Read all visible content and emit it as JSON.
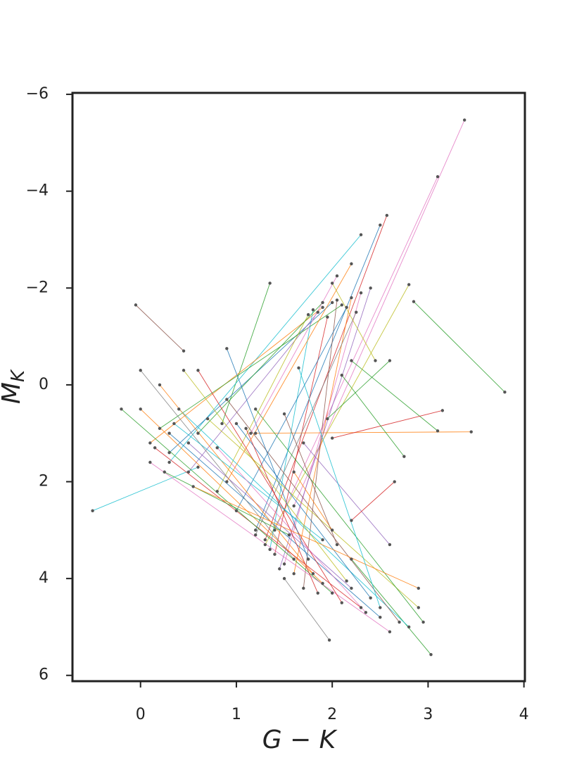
{
  "chart_data": {
    "type": "line-scatter",
    "xlabel": "G − K",
    "ylabel": {
      "main": "M",
      "sub": "K"
    },
    "xlim": [
      -0.71,
      4.01
    ],
    "ylim": [
      -6.03,
      6.12
    ],
    "y_inverted": true,
    "xticks": [
      0,
      1,
      2,
      3,
      4
    ],
    "yticks": [
      {
        "value": -6,
        "label": "−6"
      },
      {
        "value": -4,
        "label": "−4"
      },
      {
        "value": -2,
        "label": "−2"
      },
      0,
      2,
      4,
      6
    ],
    "point_color": "#555555",
    "segments": [
      {
        "x": [
          3.38,
          1.6
        ],
        "y": [
          -5.47,
          2.5
        ],
        "color": "#e377c2"
      },
      {
        "x": [
          3.1,
          1.4
        ],
        "y": [
          -4.3,
          3.0
        ],
        "color": "#e377c2"
      },
      {
        "x": [
          3.8,
          2.85
        ],
        "y": [
          0.15,
          -1.72
        ],
        "color": "#2ca02c"
      },
      {
        "x": [
          -0.5,
          0.6
        ],
        "y": [
          2.6,
          1.7
        ],
        "color": "#17becf"
      },
      {
        "x": [
          -0.05,
          0.45
        ],
        "y": [
          -1.65,
          -0.7
        ],
        "color": "#8c564b"
      },
      {
        "x": [
          1.35,
          0.85
        ],
        "y": [
          -2.1,
          0.8
        ],
        "color": "#2ca02c"
      },
      {
        "x": [
          3.45,
          1.2
        ],
        "y": [
          0.97,
          1.0
        ],
        "color": "#ff7f0e"
      },
      {
        "x": [
          3.1,
          2.2
        ],
        "y": [
          0.95,
          -0.5
        ],
        "color": "#2ca02c"
      },
      {
        "x": [
          3.15,
          2.0
        ],
        "y": [
          0.53,
          1.1
        ],
        "color": "#d62728"
      },
      {
        "x": [
          2.75,
          2.1
        ],
        "y": [
          1.48,
          -0.2
        ],
        "color": "#2ca02c"
      },
      {
        "x": [
          2.57,
          1.3
        ],
        "y": [
          -3.5,
          3.2
        ],
        "color": "#d62728"
      },
      {
        "x": [
          2.5,
          1.2
        ],
        "y": [
          -3.3,
          3.0
        ],
        "color": "#1f77b4"
      },
      {
        "x": [
          2.3,
          0.3
        ],
        "y": [
          -3.1,
          1.6
        ],
        "color": "#17becf"
      },
      {
        "x": [
          2.8,
          1.3
        ],
        "y": [
          -2.07,
          3.3
        ],
        "color": "#bcbd22"
      },
      {
        "x": [
          1.97,
          1.5
        ],
        "y": [
          5.27,
          4.0
        ],
        "color": "#7f7f7f"
      },
      {
        "x": [
          3.03,
          2.2
        ],
        "y": [
          5.57,
          3.6
        ],
        "color": "#2ca02c"
      },
      {
        "x": [
          1.9,
          0.1
        ],
        "y": [
          -1.6,
          1.2
        ],
        "color": "#ff7f0e"
      },
      {
        "x": [
          2.0,
          0.3
        ],
        "y": [
          -1.7,
          1.4
        ],
        "color": "#1f77b4"
      },
      {
        "x": [
          1.85,
          0.5
        ],
        "y": [
          -1.5,
          1.8
        ],
        "color": "#9467bd"
      },
      {
        "x": [
          2.1,
          0.2
        ],
        "y": [
          -1.65,
          0.9
        ],
        "color": "#2ca02c"
      },
      {
        "x": [
          1.95,
          1.4
        ],
        "y": [
          -1.4,
          3.5
        ],
        "color": "#d62728"
      },
      {
        "x": [
          2.2,
          1.6
        ],
        "y": [
          -1.8,
          3.9
        ],
        "color": "#ff7f0e"
      },
      {
        "x": [
          1.8,
          1.35
        ],
        "y": [
          -1.55,
          3.4
        ],
        "color": "#17becf"
      },
      {
        "x": [
          2.05,
          1.7
        ],
        "y": [
          -1.75,
          4.2
        ],
        "color": "#8c564b"
      },
      {
        "x": [
          2.3,
          1.5
        ],
        "y": [
          -1.9,
          3.7
        ],
        "color": "#e377c2"
      },
      {
        "x": [
          1.75,
          0.8
        ],
        "y": [
          -1.45,
          2.2
        ],
        "color": "#bcbd22"
      },
      {
        "x": [
          2.15,
          1.0
        ],
        "y": [
          -1.6,
          2.6
        ],
        "color": "#1f77b4"
      },
      {
        "x": [
          1.9,
          0.6
        ],
        "y": [
          -1.7,
          1.0
        ],
        "color": "#2ca02c"
      },
      {
        "x": [
          2.4,
          1.45
        ],
        "y": [
          -2.0,
          3.8
        ],
        "color": "#9467bd"
      },
      {
        "x": [
          2.25,
          1.2
        ],
        "y": [
          -1.5,
          3.1
        ],
        "color": "#7f7f7f"
      },
      {
        "x": [
          0.0,
          1.9
        ],
        "y": [
          0.5,
          4.1
        ],
        "color": "#ff7f0e"
      },
      {
        "x": [
          0.15,
          2.3
        ],
        "y": [
          1.3,
          4.6
        ],
        "color": "#d62728"
      },
      {
        "x": [
          0.3,
          2.5
        ],
        "y": [
          1.0,
          4.8
        ],
        "color": "#1f77b4"
      },
      {
        "x": [
          -0.2,
          2.0
        ],
        "y": [
          0.5,
          4.3
        ],
        "color": "#2ca02c"
      },
      {
        "x": [
          0.4,
          2.8
        ],
        "y": [
          0.5,
          5.0
        ],
        "color": "#17becf"
      },
      {
        "x": [
          0.7,
          2.9
        ],
        "y": [
          0.7,
          4.6
        ],
        "color": "#bcbd22"
      },
      {
        "x": [
          0.1,
          2.6
        ],
        "y": [
          1.6,
          5.1
        ],
        "color": "#e377c2"
      },
      {
        "x": [
          0.5,
          2.2
        ],
        "y": [
          1.2,
          4.2
        ],
        "color": "#9467bd"
      },
      {
        "x": [
          0.9,
          2.7
        ],
        "y": [
          0.3,
          4.9
        ],
        "color": "#8c564b"
      },
      {
        "x": [
          0.2,
          1.8
        ],
        "y": [
          0.0,
          3.9
        ],
        "color": "#ff7f0e"
      },
      {
        "x": [
          1.0,
          2.4
        ],
        "y": [
          0.8,
          4.4
        ],
        "color": "#1f77b4"
      },
      {
        "x": [
          0.6,
          2.1
        ],
        "y": [
          -0.3,
          4.5
        ],
        "color": "#d62728"
      },
      {
        "x": [
          1.2,
          2.95
        ],
        "y": [
          0.5,
          4.9
        ],
        "color": "#2ca02c"
      },
      {
        "x": [
          0.0,
          1.6
        ],
        "y": [
          -0.3,
          3.6
        ],
        "color": "#7f7f7f"
      },
      {
        "x": [
          0.35,
          1.9
        ],
        "y": [
          0.8,
          3.2
        ],
        "color": "#17becf"
      },
      {
        "x": [
          1.6,
          2.0
        ],
        "y": [
          1.8,
          3.0
        ],
        "color": "#ff7f0e"
      },
      {
        "x": [
          1.7,
          2.6
        ],
        "y": [
          1.2,
          3.3
        ],
        "color": "#9467bd"
      },
      {
        "x": [
          0.45,
          2.15
        ],
        "y": [
          -0.3,
          4.05
        ],
        "color": "#bcbd22"
      },
      {
        "x": [
          0.8,
          2.35
        ],
        "y": [
          1.3,
          4.7
        ],
        "color": "#e377c2"
      },
      {
        "x": [
          0.25,
          1.55
        ],
        "y": [
          1.8,
          3.1
        ],
        "color": "#2ca02c"
      },
      {
        "x": [
          1.1,
          1.85
        ],
        "y": [
          0.9,
          4.3
        ],
        "color": "#d62728"
      },
      {
        "x": [
          2.2,
          2.65
        ],
        "y": [
          2.8,
          2.0
        ],
        "color": "#d62728"
      },
      {
        "x": [
          0.9,
          1.75
        ],
        "y": [
          -0.75,
          3.6
        ],
        "color": "#1f77b4"
      },
      {
        "x": [
          1.5,
          2.05
        ],
        "y": [
          0.6,
          3.3
        ],
        "color": "#8c564b"
      },
      {
        "x": [
          0.55,
          2.9
        ],
        "y": [
          2.1,
          4.2
        ],
        "color": "#ff7f0e"
      },
      {
        "x": [
          1.65,
          2.5
        ],
        "y": [
          -0.35,
          4.6
        ],
        "color": "#17becf"
      },
      {
        "x": [
          2.0,
          2.45
        ],
        "y": [
          -2.1,
          -0.5
        ],
        "color": "#bcbd22"
      },
      {
        "x": [
          2.6,
          1.95
        ],
        "y": [
          -0.5,
          0.7
        ],
        "color": "#2ca02c"
      },
      {
        "x": [
          2.05,
          1.15
        ],
        "y": [
          -2.25,
          1.0
        ],
        "color": "#e377c2"
      },
      {
        "x": [
          2.2,
          0.9
        ],
        "y": [
          -2.5,
          2.0
        ],
        "color": "#ff7f0e"
      }
    ]
  }
}
